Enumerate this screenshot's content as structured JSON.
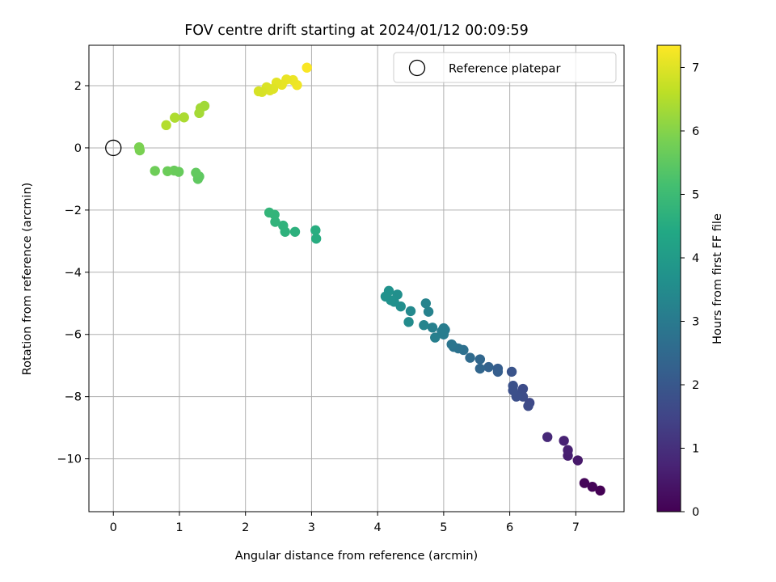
{
  "chart_data": {
    "type": "scatter",
    "title": "FOV centre drift starting at 2024/01/12 00:09:59",
    "xlabel": "Angular distance from reference (arcmin)",
    "ylabel": "Rotation from reference (arcmin)",
    "xlim": [
      -0.37,
      7.73
    ],
    "ylim": [
      -11.7,
      3.3
    ],
    "xticks": [
      0,
      1,
      2,
      3,
      4,
      5,
      6,
      7
    ],
    "yticks": [
      2,
      0,
      -2,
      -4,
      -6,
      -8,
      -10
    ],
    "grid": true,
    "colormap": "viridis",
    "colorbar": {
      "label": "Hours from first FF file",
      "range": [
        0,
        7.35
      ],
      "ticks": [
        0,
        1,
        2,
        3,
        4,
        5,
        6,
        7
      ]
    },
    "legend": {
      "placement": "top-right",
      "entries": [
        {
          "label": "Reference platepar",
          "marker": "open-circle"
        }
      ]
    },
    "reference_point": {
      "x": 0,
      "y": 0
    },
    "points": [
      [
        7.37,
        -11.02,
        0.0
      ],
      [
        7.25,
        -10.9,
        0.07
      ],
      [
        7.13,
        -10.78,
        0.12
      ],
      [
        7.03,
        -10.05,
        0.5
      ],
      [
        6.88,
        -9.9,
        0.6
      ],
      [
        6.88,
        -9.72,
        0.65
      ],
      [
        6.82,
        -9.42,
        0.7
      ],
      [
        6.57,
        -9.3,
        0.85
      ],
      [
        6.3,
        -8.2,
        1.6
      ],
      [
        6.28,
        -8.3,
        1.65
      ],
      [
        6.2,
        -7.75,
        1.7
      ],
      [
        6.2,
        -8.0,
        1.72
      ],
      [
        6.12,
        -7.95,
        1.75
      ],
      [
        6.1,
        -8.0,
        1.78
      ],
      [
        6.05,
        -7.8,
        1.8
      ],
      [
        6.05,
        -7.65,
        1.82
      ],
      [
        6.03,
        -7.2,
        1.9
      ],
      [
        5.82,
        -7.1,
        2.15
      ],
      [
        5.82,
        -7.2,
        2.17
      ],
      [
        5.68,
        -7.05,
        2.3
      ],
      [
        5.55,
        -7.1,
        2.4
      ],
      [
        5.55,
        -6.8,
        2.45
      ],
      [
        5.4,
        -6.75,
        2.55
      ],
      [
        5.3,
        -6.5,
        2.7
      ],
      [
        5.22,
        -6.45,
        2.75
      ],
      [
        5.15,
        -6.4,
        2.8
      ],
      [
        5.12,
        -6.32,
        2.85
      ],
      [
        5.02,
        -5.85,
        3.0
      ],
      [
        5.0,
        -6.0,
        3.05
      ],
      [
        5.0,
        -5.8,
        3.08
      ],
      [
        4.97,
        -5.9,
        3.1
      ],
      [
        4.87,
        -6.1,
        3.15
      ],
      [
        4.83,
        -5.78,
        3.18
      ],
      [
        4.77,
        -5.27,
        3.22
      ],
      [
        4.73,
        -5.0,
        3.25
      ],
      [
        4.7,
        -5.7,
        3.28
      ],
      [
        4.5,
        -5.25,
        3.45
      ],
      [
        4.47,
        -5.6,
        3.5
      ],
      [
        4.35,
        -5.1,
        3.58
      ],
      [
        4.3,
        -4.72,
        3.62
      ],
      [
        4.25,
        -4.95,
        3.65
      ],
      [
        4.2,
        -4.9,
        3.68
      ],
      [
        4.17,
        -4.6,
        3.7
      ],
      [
        4.12,
        -4.78,
        3.72
      ],
      [
        3.07,
        -2.92,
        4.55
      ],
      [
        3.06,
        -2.65,
        4.57
      ],
      [
        2.75,
        -2.7,
        4.65
      ],
      [
        2.6,
        -2.7,
        4.7
      ],
      [
        2.57,
        -2.5,
        4.72
      ],
      [
        2.45,
        -2.38,
        4.75
      ],
      [
        2.44,
        -2.15,
        4.78
      ],
      [
        2.36,
        -2.08,
        4.8
      ],
      [
        1.3,
        -0.92,
        5.5
      ],
      [
        1.28,
        -1.0,
        5.52
      ],
      [
        1.25,
        -0.8,
        5.55
      ],
      [
        0.99,
        -0.77,
        5.62
      ],
      [
        0.92,
        -0.73,
        5.65
      ],
      [
        0.82,
        -0.75,
        5.68
      ],
      [
        0.63,
        -0.74,
        5.72
      ],
      [
        0.4,
        -0.08,
        5.85
      ],
      [
        0.39,
        0.02,
        5.88
      ],
      [
        1.38,
        1.35,
        6.3
      ],
      [
        1.32,
        1.28,
        6.32
      ],
      [
        1.3,
        1.12,
        6.35
      ],
      [
        1.07,
        0.98,
        6.42
      ],
      [
        0.93,
        0.97,
        6.45
      ],
      [
        0.8,
        0.73,
        6.5
      ],
      [
        2.93,
        2.58,
        7.3
      ],
      [
        2.78,
        2.02,
        7.2
      ],
      [
        2.72,
        2.18,
        7.15
      ],
      [
        2.62,
        2.2,
        7.12
      ],
      [
        2.55,
        2.03,
        7.1
      ],
      [
        2.47,
        2.1,
        7.05
      ],
      [
        2.42,
        1.9,
        7.0
      ],
      [
        2.37,
        1.85,
        6.98
      ],
      [
        2.32,
        1.95,
        6.95
      ],
      [
        2.25,
        1.8,
        6.92
      ],
      [
        2.2,
        1.82,
        6.9
      ]
    ]
  }
}
